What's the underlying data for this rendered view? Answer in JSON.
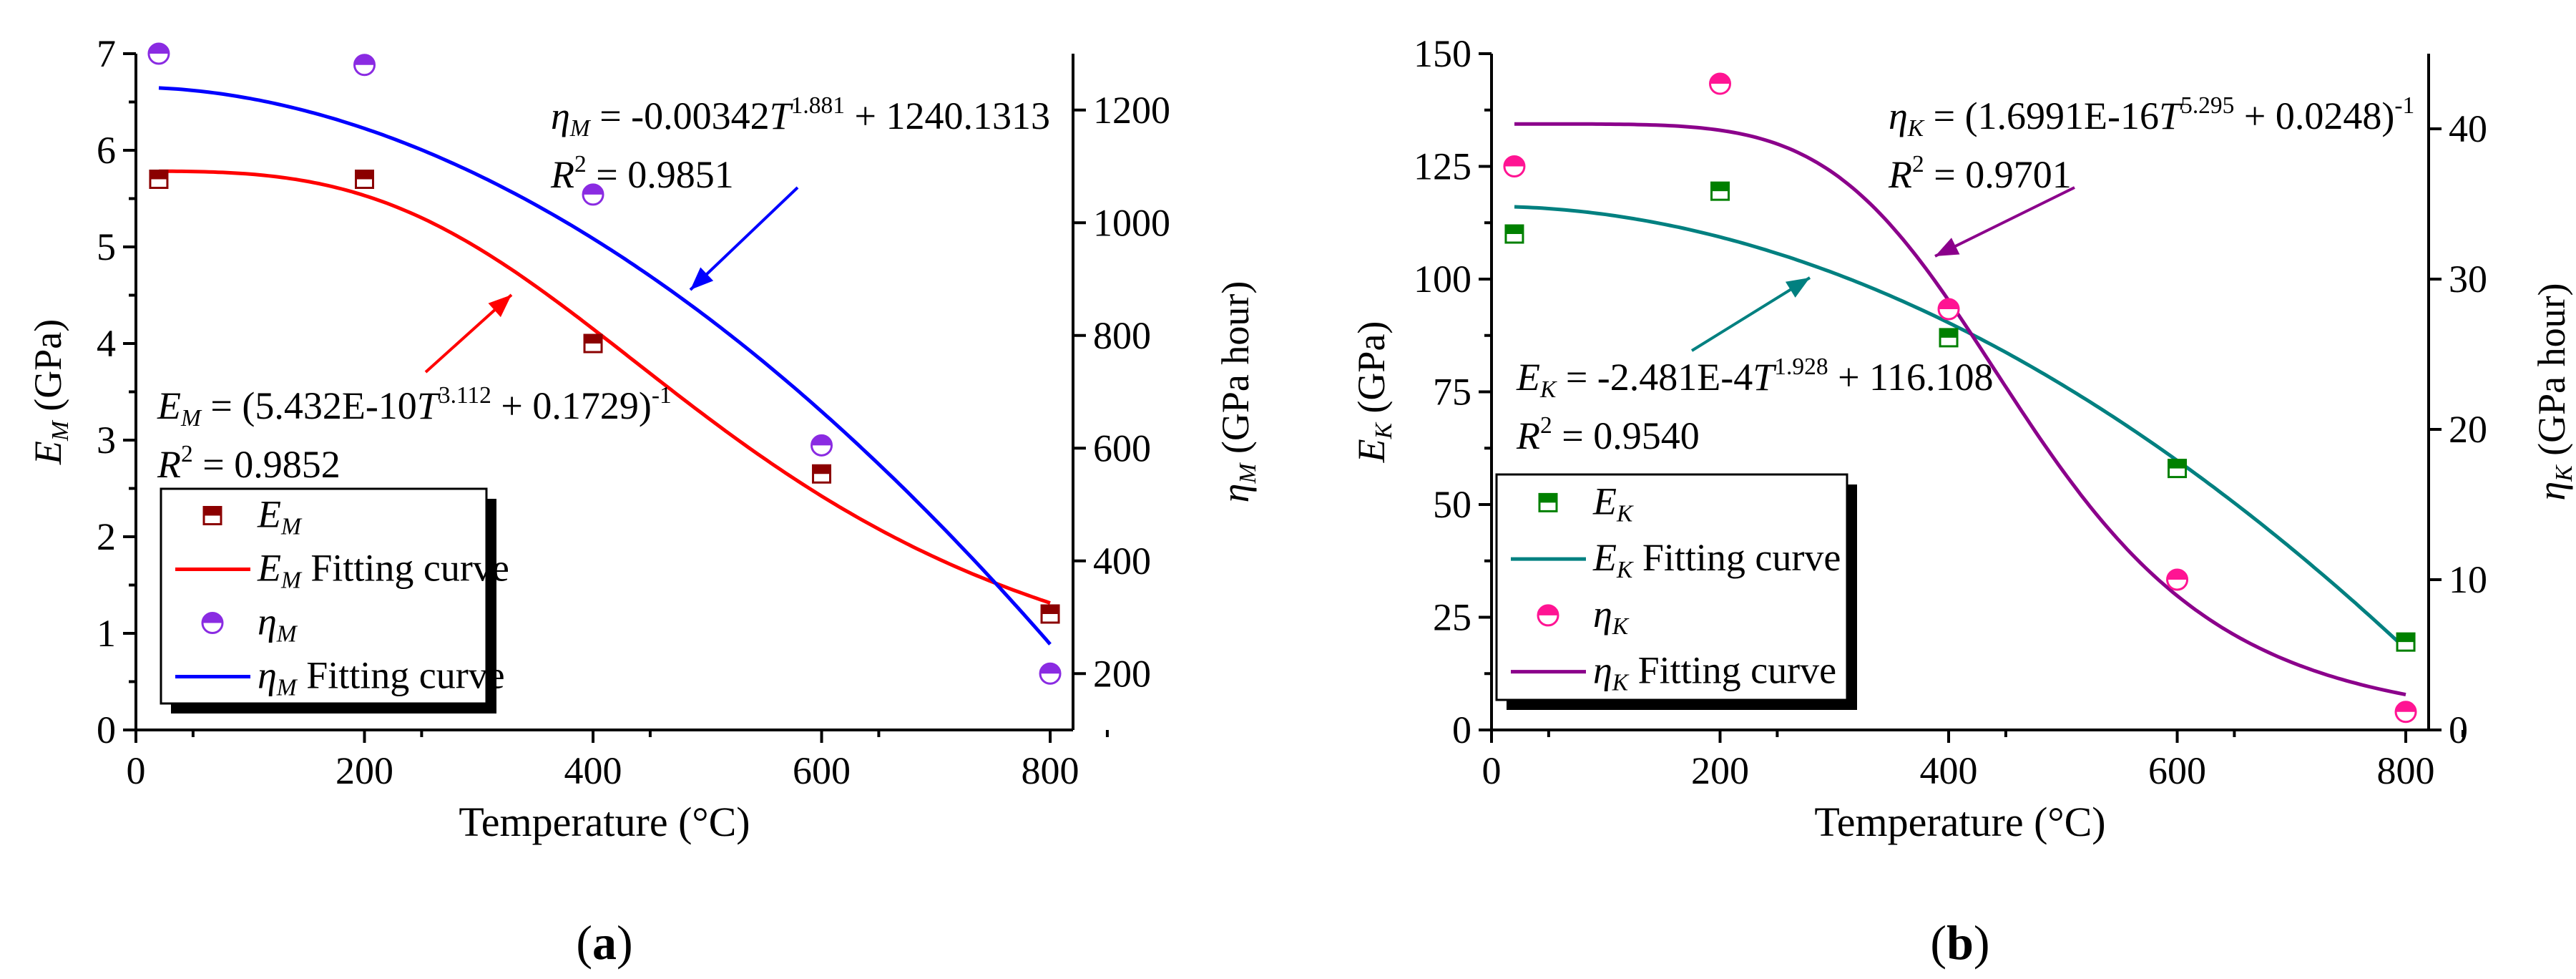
{
  "chart_data": [
    {
      "panel_label": "(a)",
      "type": "scatter",
      "xlabel": "Temperature (°C)",
      "xlim": [
        0,
        820
      ],
      "xticks": [
        0,
        200,
        400,
        600,
        800
      ],
      "x": [
        20,
        200,
        400,
        600,
        800
      ],
      "y_left": {
        "symbol": "E",
        "sub": "M",
        "unit": " (GPa)",
        "lim": [
          0,
          7
        ],
        "ticks": [
          0,
          1,
          2,
          3,
          4,
          5,
          6,
          7
        ]
      },
      "y_right": {
        "symbol": "η",
        "sub": "M",
        "unit": " (GPa hour)",
        "lim": [
          100,
          1300
        ],
        "ticks": [
          200,
          400,
          600,
          800,
          1000,
          1200
        ]
      },
      "series": [
        {
          "name": "E_M",
          "axis": "left",
          "marker": "square",
          "color": "#8b0000",
          "values": [
            5.7,
            5.7,
            4.0,
            2.65,
            1.2
          ],
          "fit": {
            "a": 5.432e-10,
            "n": 3.112,
            "b": 0.1729,
            "form": "inverse",
            "color": "#ff0000"
          }
        },
        {
          "name": "η_M",
          "axis": "right",
          "marker": "circle",
          "color": "#8a2be2",
          "values": [
            1300,
            1280,
            1050,
            605,
            200
          ],
          "fit": {
            "a": -0.00342,
            "n": 1.881,
            "b": 1240.1313,
            "form": "power",
            "color": "#0000ff"
          }
        }
      ],
      "legend": [
        {
          "sym": "E",
          "sub": "M",
          "suffix": "",
          "series": 0,
          "kind": "marker"
        },
        {
          "sym": "E",
          "sub": "M",
          "suffix": " Fitting curve",
          "series": 0,
          "kind": "line"
        },
        {
          "sym": "η",
          "sub": "M",
          "suffix": "",
          "series": 1,
          "kind": "marker"
        },
        {
          "sym": "η",
          "sub": "M",
          "suffix": " Fitting curve",
          "series": 1,
          "kind": "line"
        }
      ],
      "annotations": [
        {
          "sym": "η",
          "sub": "M",
          "pre": " = -0.00342",
          "var": "T",
          "exp": "1.881",
          "post": " + 1240.1313",
          "tail": "",
          "r2": " = 0.9851",
          "color": "#0000ff"
        },
        {
          "sym": "E",
          "sub": "M",
          "pre": " = (5.432E-10",
          "var": "T",
          "exp": "3.112",
          "post": " + 0.1729)",
          "tail": "-1",
          "r2": " = 0.9852",
          "color": "#ff0000"
        }
      ]
    },
    {
      "panel_label": "(b)",
      "type": "scatter",
      "xlabel": "Temperature (°C)",
      "xlim": [
        0,
        820
      ],
      "xticks": [
        0,
        200,
        400,
        600,
        800
      ],
      "x": [
        20,
        200,
        400,
        600,
        800
      ],
      "y_left": {
        "symbol": "E",
        "sub": "K",
        "unit": " (GPa)",
        "lim": [
          0,
          150
        ],
        "ticks": [
          0,
          25,
          50,
          75,
          100,
          125,
          150
        ]
      },
      "y_right": {
        "symbol": "η",
        "sub": "K",
        "unit": " (GPa hour)",
        "lim": [
          0,
          45
        ],
        "ticks": [
          0,
          10,
          20,
          30,
          40
        ]
      },
      "series": [
        {
          "name": "E_K",
          "axis": "left",
          "marker": "square",
          "color": "#008000",
          "values": [
            110,
            119.5,
            87,
            58,
            19.5
          ],
          "fit": {
            "a": -0.0002481,
            "n": 1.928,
            "b": 116.108,
            "form": "power",
            "color": "#008080"
          }
        },
        {
          "name": "η_K",
          "axis": "right",
          "marker": "circle",
          "color": "#ff1493",
          "values": [
            37.5,
            43,
            28,
            10,
            1.2
          ],
          "fit": {
            "a": 1.6991e-16,
            "n": 5.295,
            "b": 0.0248,
            "form": "inverse",
            "color": "#8b008b"
          }
        }
      ],
      "legend": [
        {
          "sym": "E",
          "sub": "K",
          "suffix": "",
          "series": 0,
          "kind": "marker"
        },
        {
          "sym": "E",
          "sub": "K",
          "suffix": " Fitting curve",
          "series": 0,
          "kind": "line"
        },
        {
          "sym": "η",
          "sub": "K",
          "suffix": "",
          "series": 1,
          "kind": "marker"
        },
        {
          "sym": "η",
          "sub": "K",
          "suffix": " Fitting curve",
          "series": 1,
          "kind": "line"
        }
      ],
      "annotations": [
        {
          "sym": "η",
          "sub": "K",
          "pre": " = (1.6991E-16",
          "var": "T",
          "exp": "5.295",
          "post": " + 0.0248)",
          "tail": "-1",
          "r2": " = 0.9701",
          "color": "#8b008b"
        },
        {
          "sym": "E",
          "sub": "K",
          "pre": " = -2.481E-4",
          "var": "T",
          "exp": "1.928",
          "post": " + 116.108",
          "tail": "",
          "r2": " = 0.9540",
          "color": "#008080"
        }
      ]
    }
  ]
}
